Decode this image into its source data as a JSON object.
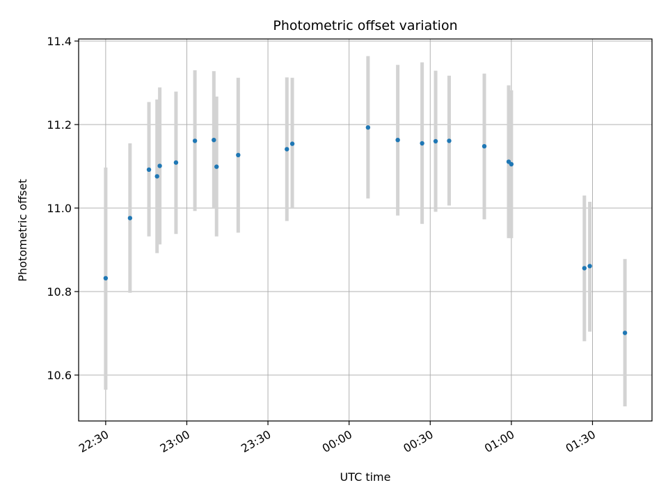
{
  "chart_data": {
    "type": "scatter",
    "title": "Photometric offset variation",
    "xlabel": "UTC time",
    "ylabel": "Photometric offset",
    "x_ticks": [
      {
        "time": "22:30",
        "label": "22:30"
      },
      {
        "time": "23:00",
        "label": "23:00"
      },
      {
        "time": "23:30",
        "label": "23:30"
      },
      {
        "time": "00:00",
        "label": "00:00"
      },
      {
        "time": "00:30",
        "label": "00:30"
      },
      {
        "time": "01:00",
        "label": "01:00"
      },
      {
        "time": "01:30",
        "label": "01:30"
      }
    ],
    "y_ticks": [
      10.6,
      10.8,
      11.0,
      11.2,
      11.4
    ],
    "xlim": [
      "22:20",
      "01:52"
    ],
    "ylim": [
      10.49,
      11.405
    ],
    "grid": true,
    "point_color": "#1f77b4",
    "errorbar_color": "#d3d3d3",
    "points": [
      {
        "time": "22:30",
        "y": 10.832,
        "low": 10.565,
        "high": 11.097
      },
      {
        "time": "22:39",
        "y": 10.976,
        "low": 10.797,
        "high": 11.155
      },
      {
        "time": "22:46",
        "y": 11.092,
        "low": 10.932,
        "high": 11.254
      },
      {
        "time": "22:49",
        "y": 11.076,
        "low": 10.892,
        "high": 11.26
      },
      {
        "time": "22:50",
        "y": 11.101,
        "low": 10.913,
        "high": 11.289
      },
      {
        "time": "22:56",
        "y": 11.109,
        "low": 10.938,
        "high": 11.279
      },
      {
        "time": "23:03",
        "y": 11.161,
        "low": 10.993,
        "high": 11.33
      },
      {
        "time": "23:10",
        "y": 11.163,
        "low": 11.0,
        "high": 11.328
      },
      {
        "time": "23:11",
        "y": 11.099,
        "low": 10.932,
        "high": 11.267
      },
      {
        "time": "23:19",
        "y": 11.127,
        "low": 10.941,
        "high": 11.312
      },
      {
        "time": "23:37",
        "y": 11.141,
        "low": 10.969,
        "high": 11.313
      },
      {
        "time": "23:39",
        "y": 11.154,
        "low": 11.0,
        "high": 11.312
      },
      {
        "time": "00:07",
        "y": 11.193,
        "low": 11.023,
        "high": 11.364
      },
      {
        "time": "00:18",
        "y": 11.163,
        "low": 10.982,
        "high": 11.343
      },
      {
        "time": "00:27",
        "y": 11.155,
        "low": 10.962,
        "high": 11.349
      },
      {
        "time": "00:32",
        "y": 11.16,
        "low": 10.991,
        "high": 11.329
      },
      {
        "time": "00:37",
        "y": 11.161,
        "low": 11.006,
        "high": 11.317
      },
      {
        "time": "00:50",
        "y": 11.148,
        "low": 10.973,
        "high": 11.322
      },
      {
        "time": "00:59",
        "y": 11.111,
        "low": 10.928,
        "high": 11.294
      },
      {
        "time": "01:00",
        "y": 11.105,
        "low": 10.928,
        "high": 11.282
      },
      {
        "time": "01:27",
        "y": 10.856,
        "low": 10.681,
        "high": 11.03
      },
      {
        "time": "01:29",
        "y": 10.861,
        "low": 10.704,
        "high": 11.015
      },
      {
        "time": "01:42",
        "y": 10.701,
        "low": 10.525,
        "high": 10.878
      }
    ]
  }
}
